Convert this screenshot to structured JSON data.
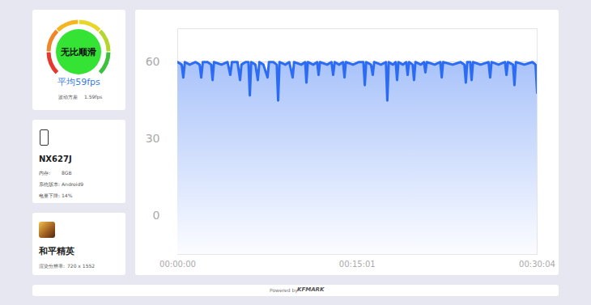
{
  "summary": {
    "status": "无比顺滑",
    "average": "平均59fps",
    "variance_label": "波动方差",
    "variance": "1.59fps"
  },
  "device": {
    "model": "NX627J",
    "rows": [
      [
        "内存:",
        "8GB"
      ],
      [
        "系统版本:",
        "Android9"
      ],
      [
        "电量下降:",
        "14%"
      ]
    ]
  },
  "game": {
    "name": "和平精英",
    "resolution_label": "渲染分辨率:",
    "resolution": "720 x 1552"
  },
  "footer": {
    "powered_by": "Powered by",
    "brand": "KFMARK"
  },
  "chart_data": {
    "type": "area",
    "color": "#2c6cf5",
    "grid": true,
    "x": [
      0,
      20,
      28,
      36,
      60,
      90,
      110,
      118,
      126,
      150,
      168,
      175,
      182,
      220,
      250,
      264,
      272,
      300,
      313,
      320,
      340,
      355,
      362,
      369,
      390,
      402,
      410,
      430,
      451,
      458,
      480,
      497,
      504,
      511,
      540,
      560,
      577,
      584,
      620,
      640,
      646,
      653,
      680,
      700,
      707,
      714,
      750,
      772,
      780,
      788,
      810,
      830,
      837,
      844,
      880,
      910,
      932,
      939,
      946,
      970,
      979,
      986,
      1020,
      1045,
      1052,
      1059,
      1080,
      1094,
      1101,
      1108,
      1130,
      1147,
      1154,
      1161,
      1179,
      1186,
      1193,
      1220,
      1236,
      1243,
      1250,
      1290,
      1318,
      1325,
      1332,
      1380,
      1420,
      1439,
      1446,
      1453,
      1468,
      1475,
      1482,
      1520,
      1560,
      1568,
      1575,
      1610,
      1643,
      1650,
      1657,
      1683,
      1690,
      1697,
      1740,
      1780,
      1796,
      1804
    ],
    "values": [
      60,
      59,
      54,
      60,
      59,
      60,
      59,
      54,
      60,
      60,
      59,
      53,
      60,
      59,
      60,
      55,
      60,
      60,
      53,
      59,
      60,
      60,
      47,
      60,
      59,
      53,
      60,
      59,
      54,
      60,
      60,
      59,
      45,
      60,
      59,
      60,
      54,
      60,
      59,
      60,
      52,
      60,
      59,
      60,
      55,
      60,
      59,
      60,
      55,
      60,
      59,
      60,
      54,
      60,
      59,
      60,
      60,
      51,
      60,
      59,
      55,
      60,
      59,
      60,
      45,
      60,
      59,
      60,
      53,
      60,
      59,
      60,
      55,
      60,
      59,
      53,
      60,
      59,
      60,
      56,
      60,
      59,
      60,
      54,
      60,
      59,
      60,
      59,
      52,
      60,
      60,
      53,
      60,
      59,
      60,
      54,
      60,
      59,
      60,
      55,
      60,
      59,
      51,
      60,
      59,
      60,
      59,
      48
    ],
    "xlim": [
      0,
      1804
    ],
    "xticks": [
      {
        "value": 0,
        "label": "00:00:00"
      },
      {
        "value": 901,
        "label": "00:15:01"
      },
      {
        "value": 1804,
        "label": "00:30:04"
      }
    ],
    "ylim": [
      -15,
      73
    ],
    "yticks": [
      0,
      30,
      60
    ]
  }
}
